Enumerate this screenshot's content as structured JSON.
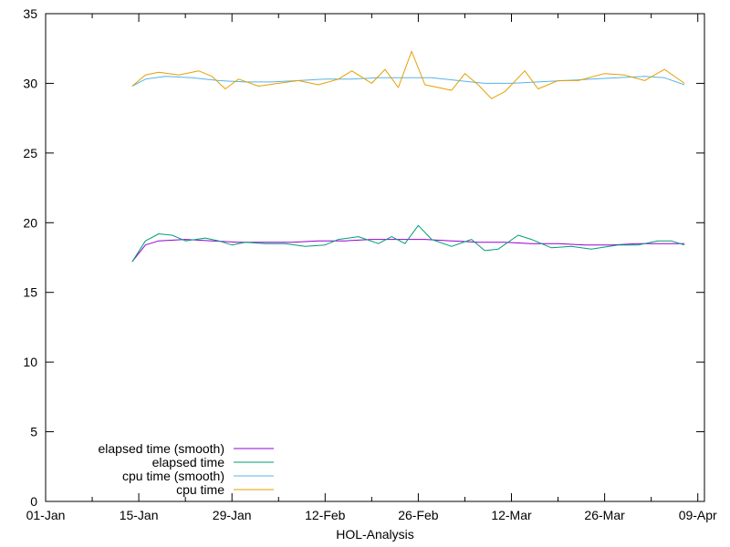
{
  "chart_data": {
    "type": "line",
    "title": "",
    "xlabel": "HOL-Analysis",
    "ylabel": "",
    "ylim": [
      0,
      35
    ],
    "xlim": [
      "2024-01-01",
      "2024-04-09"
    ],
    "x_ticks": [
      "01-Jan",
      "15-Jan",
      "29-Jan",
      "12-Feb",
      "26-Feb",
      "12-Mar",
      "26-Mar",
      "09-Apr"
    ],
    "y_ticks": [
      "0",
      "5",
      "10",
      "15",
      "20",
      "25",
      "30",
      "35"
    ],
    "grid": false,
    "legend_position": "bottom-left",
    "series": [
      {
        "name": "elapsed time (smooth)",
        "color": "#9400d3",
        "points": [
          [
            "2024-01-14",
            17.2
          ],
          [
            "2024-01-16",
            18.4
          ],
          [
            "2024-01-18",
            18.7
          ],
          [
            "2024-01-22",
            18.8
          ],
          [
            "2024-01-26",
            18.7
          ],
          [
            "2024-01-30",
            18.6
          ],
          [
            "2024-02-03",
            18.6
          ],
          [
            "2024-02-07",
            18.6
          ],
          [
            "2024-02-11",
            18.7
          ],
          [
            "2024-02-15",
            18.7
          ],
          [
            "2024-02-19",
            18.8
          ],
          [
            "2024-02-23",
            18.8
          ],
          [
            "2024-02-27",
            18.8
          ],
          [
            "2024-03-02",
            18.7
          ],
          [
            "2024-03-06",
            18.6
          ],
          [
            "2024-03-10",
            18.6
          ],
          [
            "2024-03-14",
            18.5
          ],
          [
            "2024-03-18",
            18.5
          ],
          [
            "2024-03-22",
            18.4
          ],
          [
            "2024-03-26",
            18.4
          ],
          [
            "2024-03-30",
            18.5
          ],
          [
            "2024-04-03",
            18.5
          ],
          [
            "2024-04-06",
            18.5
          ]
        ]
      },
      {
        "name": "elapsed time",
        "color": "#009e73",
        "points": [
          [
            "2024-01-14",
            17.2
          ],
          [
            "2024-01-16",
            18.7
          ],
          [
            "2024-01-18",
            19.2
          ],
          [
            "2024-01-20",
            19.1
          ],
          [
            "2024-01-22",
            18.7
          ],
          [
            "2024-01-25",
            18.9
          ],
          [
            "2024-01-27",
            18.7
          ],
          [
            "2024-01-29",
            18.4
          ],
          [
            "2024-01-31",
            18.6
          ],
          [
            "2024-02-03",
            18.5
          ],
          [
            "2024-02-06",
            18.5
          ],
          [
            "2024-02-09",
            18.3
          ],
          [
            "2024-02-12",
            18.4
          ],
          [
            "2024-02-14",
            18.8
          ],
          [
            "2024-02-17",
            19.0
          ],
          [
            "2024-02-20",
            18.5
          ],
          [
            "2024-02-22",
            19.0
          ],
          [
            "2024-02-24",
            18.5
          ],
          [
            "2024-02-26",
            19.8
          ],
          [
            "2024-02-28",
            18.8
          ],
          [
            "2024-03-02",
            18.3
          ],
          [
            "2024-03-05",
            18.8
          ],
          [
            "2024-03-07",
            18.0
          ],
          [
            "2024-03-09",
            18.1
          ],
          [
            "2024-03-12",
            19.1
          ],
          [
            "2024-03-14",
            18.8
          ],
          [
            "2024-03-17",
            18.2
          ],
          [
            "2024-03-20",
            18.3
          ],
          [
            "2024-03-23",
            18.1
          ],
          [
            "2024-03-27",
            18.4
          ],
          [
            "2024-03-30",
            18.4
          ],
          [
            "2024-04-02",
            18.7
          ],
          [
            "2024-04-04",
            18.7
          ],
          [
            "2024-04-06",
            18.4
          ]
        ]
      },
      {
        "name": "cpu time (smooth)",
        "color": "#56b4e9",
        "points": [
          [
            "2024-01-14",
            29.8
          ],
          [
            "2024-01-16",
            30.3
          ],
          [
            "2024-01-19",
            30.5
          ],
          [
            "2024-01-23",
            30.4
          ],
          [
            "2024-01-27",
            30.2
          ],
          [
            "2024-01-31",
            30.1
          ],
          [
            "2024-02-04",
            30.1
          ],
          [
            "2024-02-08",
            30.2
          ],
          [
            "2024-02-12",
            30.3
          ],
          [
            "2024-02-16",
            30.3
          ],
          [
            "2024-02-20",
            30.4
          ],
          [
            "2024-02-24",
            30.4
          ],
          [
            "2024-02-28",
            30.4
          ],
          [
            "2024-03-03",
            30.2
          ],
          [
            "2024-03-07",
            30.0
          ],
          [
            "2024-03-11",
            30.0
          ],
          [
            "2024-03-15",
            30.1
          ],
          [
            "2024-03-19",
            30.2
          ],
          [
            "2024-03-23",
            30.3
          ],
          [
            "2024-03-27",
            30.4
          ],
          [
            "2024-03-31",
            30.5
          ],
          [
            "2024-04-03",
            30.4
          ],
          [
            "2024-04-06",
            29.9
          ]
        ]
      },
      {
        "name": "cpu time",
        "color": "#e69f00",
        "points": [
          [
            "2024-01-14",
            29.8
          ],
          [
            "2024-01-16",
            30.6
          ],
          [
            "2024-01-18",
            30.8
          ],
          [
            "2024-01-21",
            30.6
          ],
          [
            "2024-01-24",
            30.9
          ],
          [
            "2024-01-26",
            30.5
          ],
          [
            "2024-01-28",
            29.6
          ],
          [
            "2024-01-30",
            30.3
          ],
          [
            "2024-02-02",
            29.8
          ],
          [
            "2024-02-05",
            30.0
          ],
          [
            "2024-02-08",
            30.2
          ],
          [
            "2024-02-11",
            29.9
          ],
          [
            "2024-02-14",
            30.3
          ],
          [
            "2024-02-16",
            30.9
          ],
          [
            "2024-02-19",
            30.0
          ],
          [
            "2024-02-21",
            31.0
          ],
          [
            "2024-02-23",
            29.7
          ],
          [
            "2024-02-25",
            32.3
          ],
          [
            "2024-02-27",
            29.9
          ],
          [
            "2024-02-29",
            29.7
          ],
          [
            "2024-03-02",
            29.5
          ],
          [
            "2024-03-04",
            30.7
          ],
          [
            "2024-03-06",
            29.9
          ],
          [
            "2024-03-08",
            28.9
          ],
          [
            "2024-03-10",
            29.4
          ],
          [
            "2024-03-13",
            30.9
          ],
          [
            "2024-03-15",
            29.6
          ],
          [
            "2024-03-18",
            30.2
          ],
          [
            "2024-03-21",
            30.2
          ],
          [
            "2024-03-25",
            30.7
          ],
          [
            "2024-03-28",
            30.6
          ],
          [
            "2024-03-31",
            30.2
          ],
          [
            "2024-04-03",
            31.0
          ],
          [
            "2024-04-06",
            30.0
          ]
        ]
      }
    ]
  }
}
